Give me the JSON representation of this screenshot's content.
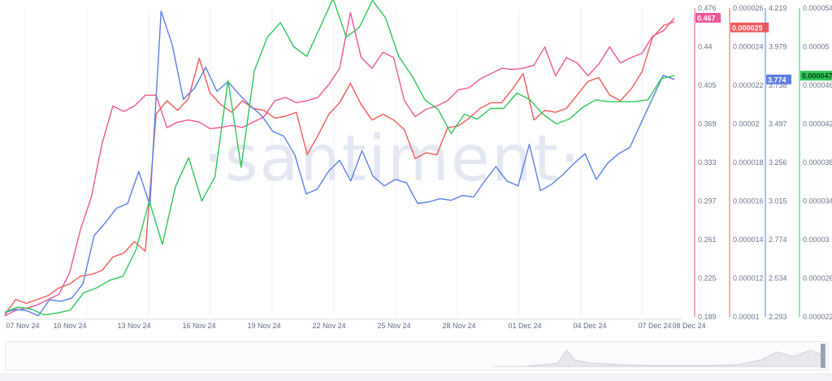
{
  "chart_data": {
    "type": "line",
    "watermark": "·santiment·",
    "x_tick_labels": [
      "07 Nov 24",
      "10 Nov 24",
      "13 Nov 24",
      "16 Nov 24",
      "19 Nov 24",
      "22 Nov 24",
      "25 Nov 24",
      "28 Nov 24",
      "01 Dec 24",
      "04 Dec 24",
      "07 Dec 24",
      "08 Dec 24"
    ],
    "axes": [
      {
        "id": "pink",
        "color": "#f0559a",
        "min": 0.189,
        "max": 0.476,
        "ticks": [
          "0.476",
          "0.44",
          "0.405",
          "0.369",
          "0.333",
          "0.297",
          "0.261",
          "0.225",
          "0.189"
        ],
        "last_value": "0.467"
      },
      {
        "id": "red",
        "color": "#f25a5a",
        "min": 1e-05,
        "max": 2.6e-05,
        "ticks": [
          "0.000026",
          "0.000024",
          "0.000022",
          "0.00002",
          "0.000018",
          "0.000016",
          "0.000014",
          "0.000012",
          "0.00001"
        ],
        "last_value": "0.000025"
      },
      {
        "id": "blue",
        "color": "#5b7fe6",
        "min": 2.293,
        "max": 4.219,
        "ticks": [
          "4.219",
          "3.979",
          "3.738",
          "3.497",
          "3.256",
          "3.015",
          "2.774",
          "2.534",
          "2.293"
        ],
        "last_value": "3.774"
      },
      {
        "id": "green",
        "color": "#2fc65a",
        "min": 2.2e-05,
        "max": 5.4e-05,
        "ticks": [
          "0.000054",
          "0.00005",
          "0.000046",
          "0.000042",
          "0.000038",
          "0.000034",
          "0.00003",
          "0.000026",
          "0.000022"
        ],
        "last_value": "0.000047"
      }
    ],
    "series": [
      {
        "axis": "pink",
        "color": "#f0559a",
        "values": [
          0.19,
          0.195,
          0.197,
          0.2,
          0.205,
          0.21,
          0.23,
          0.27,
          0.3,
          0.35,
          0.385,
          0.38,
          0.385,
          0.395,
          0.395,
          0.365,
          0.37,
          0.372,
          0.37,
          0.364,
          0.365,
          0.367,
          0.365,
          0.37,
          0.375,
          0.39,
          0.393,
          0.388,
          0.39,
          0.393,
          0.405,
          0.42,
          0.472,
          0.43,
          0.42,
          0.435,
          0.43,
          0.39,
          0.375,
          0.382,
          0.385,
          0.39,
          0.4,
          0.402,
          0.41,
          0.415,
          0.42,
          0.419,
          0.42,
          0.423,
          0.44,
          0.413,
          0.43,
          0.425,
          0.413,
          0.424,
          0.44,
          0.425,
          0.43,
          0.434,
          0.45,
          0.455,
          0.467
        ]
      },
      {
        "axis": "red",
        "color": "#f25a5a",
        "values": [
          1.01e-05,
          1.09e-05,
          1.07e-05,
          1.09e-05,
          1.11e-05,
          1.15e-05,
          1.17e-05,
          1.21e-05,
          1.22e-05,
          1.24e-05,
          1.31e-05,
          1.33e-05,
          1.39e-05,
          1.34e-05,
          2.05e-05,
          2.12e-05,
          2.07e-05,
          2.13e-05,
          2.34e-05,
          2.16e-05,
          2.1e-05,
          2.06e-05,
          2.12e-05,
          2.08e-05,
          2.07e-05,
          2.03e-05,
          2.04e-05,
          2.06e-05,
          1.84e-05,
          1.94e-05,
          2.05e-05,
          2.11e-05,
          2.21e-05,
          2.1e-05,
          2.02e-05,
          2.05e-05,
          2.02e-05,
          1.97e-05,
          1.82e-05,
          1.85e-05,
          1.84e-05,
          1.98e-05,
          1.99e-05,
          2.03e-05,
          2.08e-05,
          2.11e-05,
          2.11e-05,
          2.18e-05,
          2.26e-05,
          2.02e-05,
          2.07e-05,
          2.06e-05,
          2.08e-05,
          2.15e-05,
          2.22e-05,
          2.24e-05,
          2.15e-05,
          2.12e-05,
          2.18e-05,
          2.27e-05,
          2.45e-05,
          2.51e-05,
          2.53e-05
        ]
      },
      {
        "axis": "blue",
        "color": "#5b7fe6",
        "values": [
          2.32,
          2.34,
          2.33,
          2.3,
          2.4,
          2.39,
          2.41,
          2.5,
          2.8,
          2.88,
          2.97,
          3,
          3.2,
          2.99,
          4.2,
          3.99,
          3.65,
          3.72,
          3.85,
          3.7,
          3.76,
          3.68,
          3.61,
          3.55,
          3.45,
          3.42,
          3.3,
          3.06,
          3.09,
          3.2,
          3.27,
          3.14,
          3.33,
          3.17,
          3.11,
          3.15,
          3.13,
          3,
          3.01,
          3.03,
          3.02,
          3.05,
          3.04,
          3.14,
          3.23,
          3.14,
          3.11,
          3.37,
          3.08,
          3.12,
          3.18,
          3.25,
          3.31,
          3.15,
          3.25,
          3.31,
          3.35,
          3.5,
          3.65,
          3.8,
          3.774
        ]
      },
      {
        "axis": "green",
        "color": "#2fc65a",
        "values": [
          2.25e-05,
          2.3e-05,
          2.28e-05,
          2.22e-05,
          2.24e-05,
          2.27e-05,
          2.45e-05,
          2.5e-05,
          2.58e-05,
          2.62e-05,
          2.9e-05,
          3.4e-05,
          2.95e-05,
          3.55e-05,
          3.85e-05,
          3.4e-05,
          3.65e-05,
          4.65e-05,
          3.75e-05,
          4.75e-05,
          5.1e-05,
          5.25e-05,
          5e-05,
          4.9e-05,
          5.2e-05,
          5.5e-05,
          5.1e-05,
          5.2e-05,
          5.48e-05,
          5.3e-05,
          4.9e-05,
          4.7e-05,
          4.45e-05,
          4.35e-05,
          4.1e-05,
          4.3e-05,
          4.25e-05,
          4.36e-05,
          4.36e-05,
          4.52e-05,
          4.45e-05,
          4.3e-05,
          4.2e-05,
          4.25e-05,
          4.37e-05,
          4.45e-05,
          4.43e-05,
          4.43e-05,
          4.43e-05,
          4.45e-05,
          4.67e-05,
          4.7e-05
        ]
      }
    ]
  }
}
